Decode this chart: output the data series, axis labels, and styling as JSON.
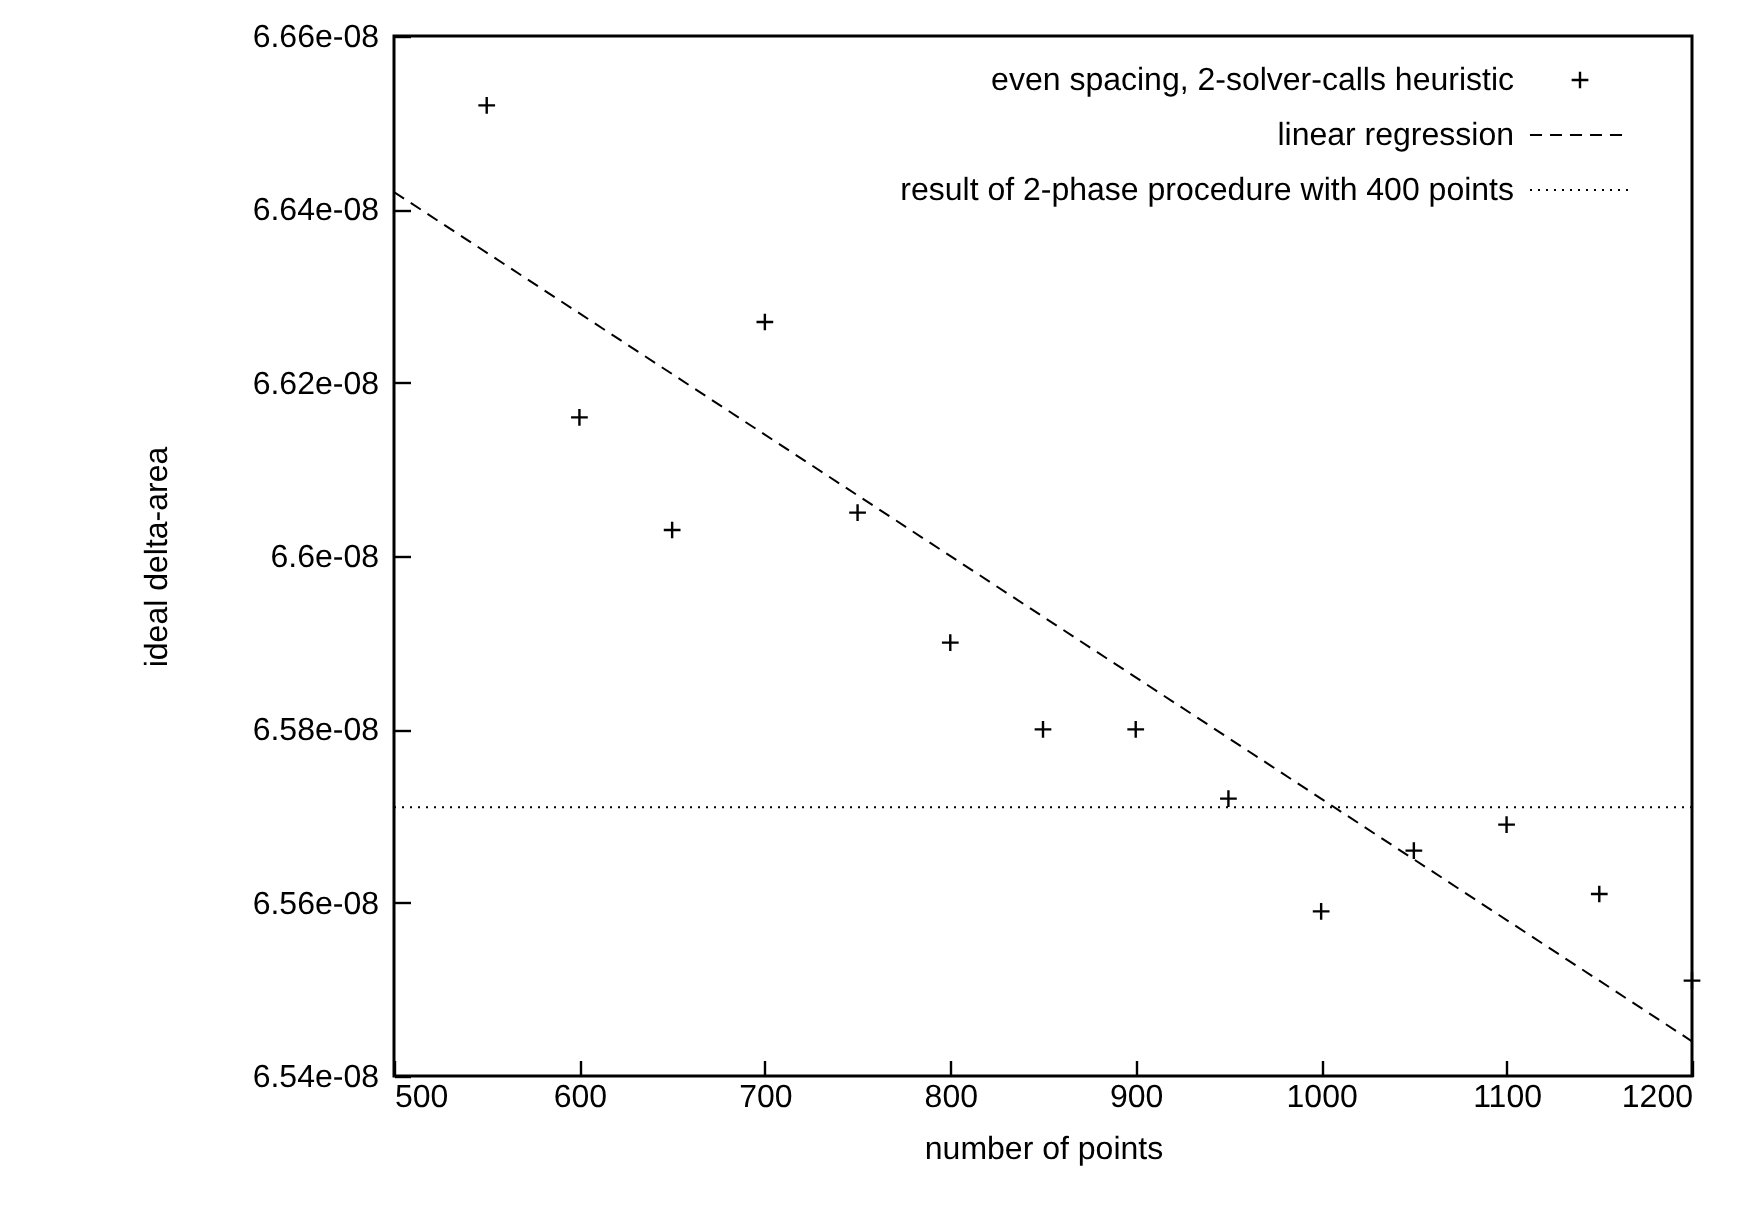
{
  "chart_data": {
    "type": "scatter",
    "xlabel": "number of points",
    "ylabel": "ideal delta-area",
    "xlim": [
      500,
      1200
    ],
    "xticks": [
      500,
      600,
      700,
      800,
      900,
      1000,
      1100,
      1200
    ],
    "ylim": [
      6.54e-08,
      6.66e-08
    ],
    "yticks": [
      {
        "value": 6.54e-08,
        "label": "6.54e-08"
      },
      {
        "value": 6.56e-08,
        "label": "6.56e-08"
      },
      {
        "value": 6.58e-08,
        "label": "6.58e-08"
      },
      {
        "value": 6.6e-08,
        "label": "6.6e-08"
      },
      {
        "value": 6.62e-08,
        "label": "6.62e-08"
      },
      {
        "value": 6.64e-08,
        "label": "6.64e-08"
      },
      {
        "value": 6.66e-08,
        "label": "6.66e-08"
      }
    ],
    "legend": "top right",
    "series": [
      {
        "name": "even spacing, 2-solver-calls heuristic",
        "color": "#000000",
        "marker": "cross",
        "x": [
          550,
          600,
          650,
          700,
          750,
          800,
          850,
          900,
          950,
          1000,
          1050,
          1100,
          1150,
          1200
        ],
        "values": [
          6.652e-08,
          6.616e-08,
          6.603e-08,
          6.627e-08,
          6.605e-08,
          6.59e-08,
          6.58e-08,
          6.58e-08,
          6.572e-08,
          6.559e-08,
          6.566e-08,
          6.569e-08,
          6.561e-08,
          6.551e-08
        ]
      },
      {
        "name": "linear regression",
        "type": "line",
        "color": "#000000",
        "line_style": "dashed",
        "x": [
          500,
          1200
        ],
        "values": [
          6.642e-08,
          6.544e-08
        ]
      }
    ],
    "ref_lines": [
      {
        "axis": "y",
        "value": 6.571e-08,
        "label": "result of 2-phase procedure with 400 points",
        "color": "#000000",
        "line_style": "dotted"
      }
    ]
  }
}
